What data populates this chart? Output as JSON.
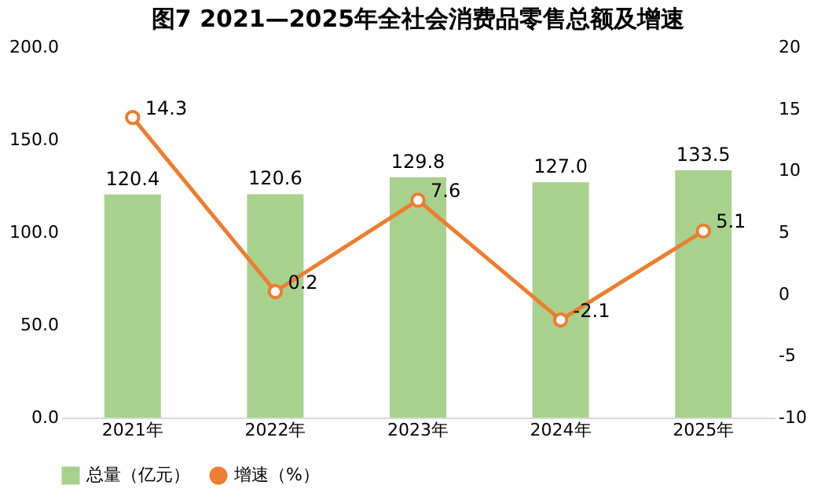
{
  "chart_data": {
    "type": "bar",
    "title": "图7 2021—2025年全社会消费品零售总额及增速",
    "categories": [
      "2021年",
      "2022年",
      "2023年",
      "2024年",
      "2025年"
    ],
    "series": [
      {
        "name": "总量（亿元）",
        "color": "#a9d18e",
        "values": [
          120.4,
          120.6,
          129.8,
          127.0,
          133.5
        ],
        "value_labels": [
          "120.4",
          "120.6",
          "129.8",
          "127.0",
          "133.5"
        ]
      },
      {
        "name": "增速（%）",
        "type": "line",
        "axis": "y2",
        "color": "#ed7d31",
        "marker": "circle",
        "values": [
          14.3,
          0.2,
          7.6,
          -2.1,
          5.1
        ],
        "value_labels": [
          "14.3",
          "0.2",
          "7.6",
          "-2.1",
          "5.1"
        ]
      }
    ],
    "ylim": [
      0,
      200
    ],
    "yticks": [
      {
        "value": 0,
        "label": "0.0"
      },
      {
        "value": 50,
        "label": "50.0"
      },
      {
        "value": 100,
        "label": "100.0"
      },
      {
        "value": 150,
        "label": "150.0"
      },
      {
        "value": 200,
        "label": "200.0"
      }
    ],
    "y2lim": [
      -10,
      20
    ],
    "y2ticks": [
      -10,
      -5,
      0,
      5,
      10,
      15,
      20
    ],
    "legend": "bottom"
  }
}
